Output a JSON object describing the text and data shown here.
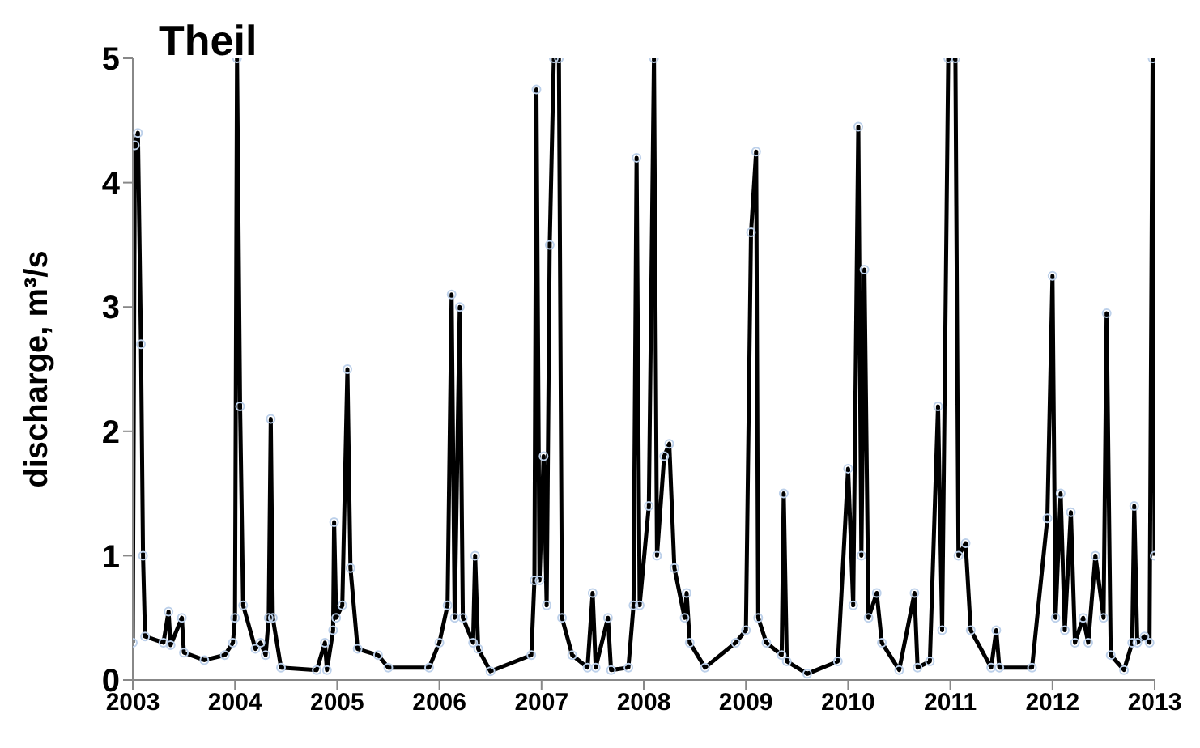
{
  "chart_data": {
    "type": "line",
    "title": "Theil",
    "ylabel": "discharge, m³/s",
    "x": [
      2003.0,
      2003.02,
      2003.05,
      2003.08,
      2003.1,
      2003.12,
      2003.3,
      2003.35,
      2003.37,
      2003.48,
      2003.5,
      2003.7,
      2003.9,
      2003.98,
      2004.0,
      2004.02,
      2004.05,
      2004.08,
      2004.2,
      2004.25,
      2004.3,
      2004.33,
      2004.35,
      2004.37,
      2004.45,
      2004.8,
      2004.88,
      2004.9,
      2004.96,
      2004.97,
      2004.99,
      2005.05,
      2005.1,
      2005.13,
      2005.2,
      2005.4,
      2005.5,
      2005.9,
      2006.0,
      2006.08,
      2006.12,
      2006.15,
      2006.2,
      2006.23,
      2006.33,
      2006.35,
      2006.38,
      2006.5,
      2006.9,
      2006.93,
      2006.95,
      2006.98,
      2007.02,
      2007.05,
      2007.08,
      2007.12,
      2007.17,
      2007.2,
      2007.3,
      2007.45,
      2007.5,
      2007.53,
      2007.65,
      2007.68,
      2007.85,
      2007.9,
      2007.93,
      2007.96,
      2008.05,
      2008.1,
      2008.13,
      2008.2,
      2008.25,
      2008.3,
      2008.4,
      2008.42,
      2008.45,
      2008.6,
      2008.9,
      2009.0,
      2009.05,
      2009.1,
      2009.12,
      2009.2,
      2009.35,
      2009.37,
      2009.4,
      2009.6,
      2009.9,
      2010.0,
      2010.05,
      2010.1,
      2010.13,
      2010.16,
      2010.2,
      2010.28,
      2010.33,
      2010.5,
      2010.65,
      2010.68,
      2010.8,
      2010.88,
      2010.92,
      2010.98,
      2011.05,
      2011.08,
      2011.15,
      2011.2,
      2011.4,
      2011.45,
      2011.48,
      2011.8,
      2011.95,
      2012.0,
      2012.03,
      2012.08,
      2012.12,
      2012.18,
      2012.22,
      2012.3,
      2012.35,
      2012.42,
      2012.5,
      2012.53,
      2012.57,
      2012.7,
      2012.78,
      2012.8,
      2012.83,
      2012.9,
      2012.95,
      2012.98,
      2013.0
    ],
    "series": [
      {
        "color": "#000000",
        "values": [
          0.3,
          4.3,
          4.4,
          2.7,
          1.0,
          0.35,
          0.3,
          0.55,
          0.28,
          0.5,
          0.22,
          0.16,
          0.2,
          0.3,
          0.5,
          5,
          2.2,
          0.6,
          0.25,
          0.3,
          0.2,
          0.5,
          2.1,
          0.5,
          0.1,
          0.08,
          0.3,
          0.08,
          0.4,
          1.27,
          0.5,
          0.6,
          2.5,
          0.9,
          0.25,
          0.2,
          0.1,
          0.1,
          0.3,
          0.6,
          3.1,
          0.5,
          3.0,
          0.5,
          0.3,
          1.0,
          0.25,
          0.07,
          0.2,
          0.8,
          4.75,
          0.8,
          1.8,
          0.6,
          3.5,
          5,
          5,
          0.5,
          0.2,
          0.1,
          0.7,
          0.1,
          0.5,
          0.08,
          0.1,
          0.6,
          4.2,
          0.6,
          1.4,
          5,
          1.0,
          1.8,
          1.9,
          0.9,
          0.5,
          0.7,
          0.3,
          0.1,
          0.3,
          0.4,
          3.6,
          4.25,
          0.5,
          0.3,
          0.2,
          1.5,
          0.15,
          0.05,
          0.15,
          1.7,
          0.6,
          4.45,
          1.0,
          3.3,
          0.5,
          0.7,
          0.3,
          0.08,
          0.7,
          0.1,
          0.15,
          2.2,
          0.4,
          5,
          5,
          1.0,
          1.1,
          0.4,
          0.1,
          0.4,
          0.1,
          0.1,
          1.3,
          3.25,
          0.5,
          1.5,
          0.4,
          1.35,
          0.3,
          0.5,
          0.3,
          1.0,
          0.5,
          2.95,
          0.2,
          0.08,
          0.3,
          1.4,
          0.3,
          0.35,
          0.3,
          5,
          1.0
        ]
      }
    ],
    "xlim": [
      2003,
      2013
    ],
    "xticks": [
      2003,
      2004,
      2005,
      2006,
      2007,
      2008,
      2009,
      2010,
      2011,
      2012,
      2013
    ],
    "ylim": [
      0,
      5
    ],
    "yticks": [
      0,
      1,
      2,
      3,
      4,
      5
    ],
    "marker": "circle",
    "line_style": "solid",
    "grid": false,
    "legend": false
  }
}
